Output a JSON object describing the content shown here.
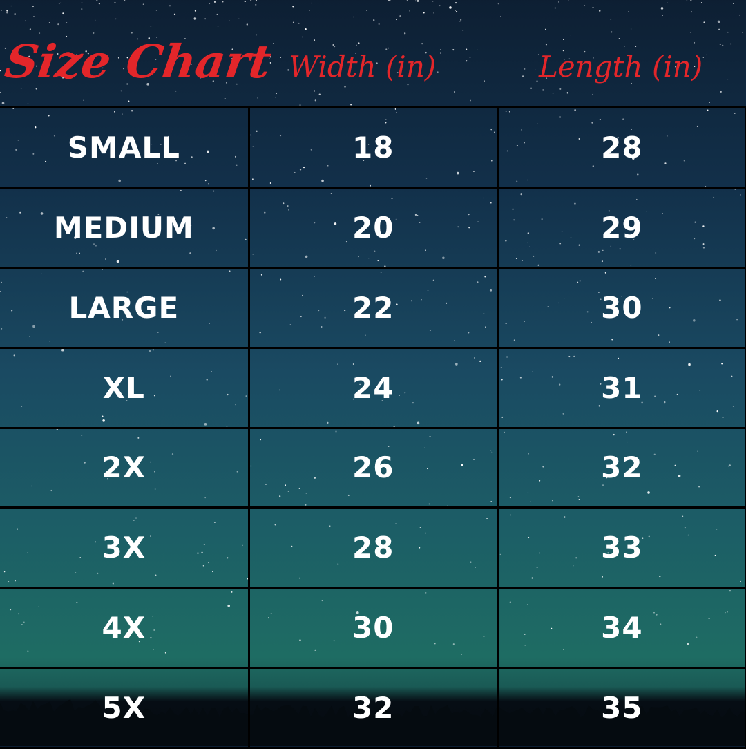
{
  "header": {
    "title": "Size Chart",
    "width_label": "Width (in)",
    "length_label": "Length (in)"
  },
  "colors": {
    "title": "#e3262a",
    "text": "#ffffff",
    "grid": "#000000"
  },
  "rows": [
    {
      "size": "SMALL",
      "width": "18",
      "length": "28"
    },
    {
      "size": "MEDIUM",
      "width": "20",
      "length": "29"
    },
    {
      "size": "LARGE",
      "width": "22",
      "length": "30"
    },
    {
      "size": "XL",
      "width": "24",
      "length": "31"
    },
    {
      "size": "2X",
      "width": "26",
      "length": "32"
    },
    {
      "size": "3X",
      "width": "28",
      "length": "33"
    },
    {
      "size": "4X",
      "width": "30",
      "length": "34"
    },
    {
      "size": "5X",
      "width": "32",
      "length": "35"
    }
  ]
}
